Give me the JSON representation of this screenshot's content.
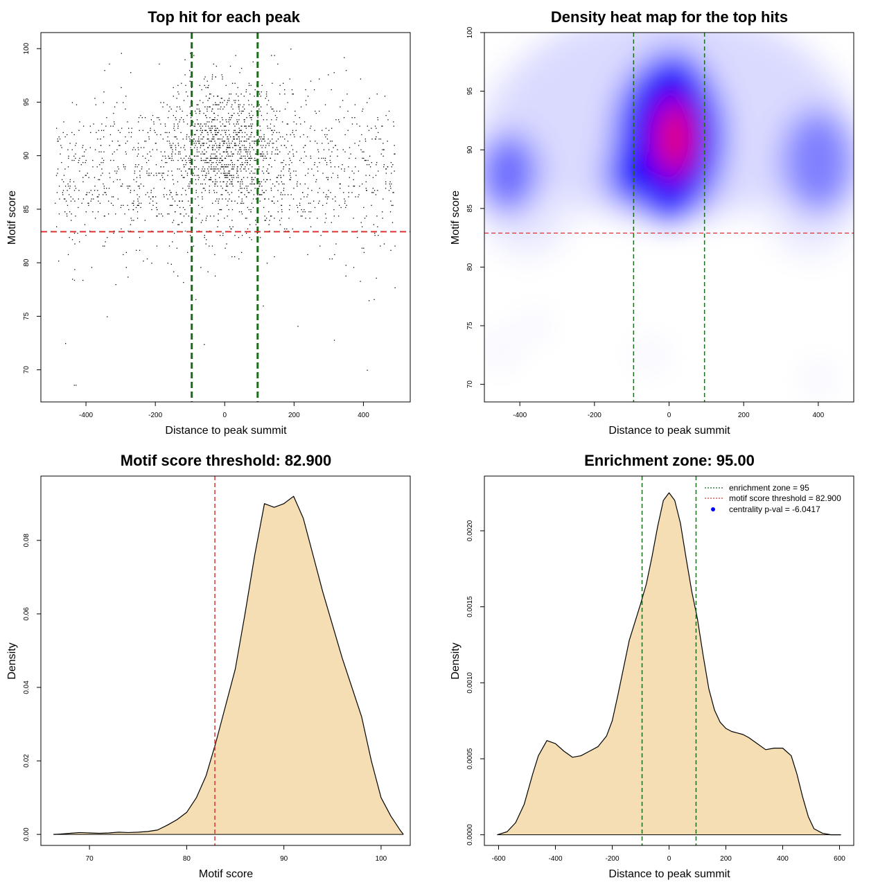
{
  "colors": {
    "threshold_line": "#e03030",
    "zone_line": "#1a6b1a",
    "fill": "#f5deb3",
    "heat_low": "#ffffff",
    "heat_mid": "#0000ff",
    "heat_high": "#ff0000"
  },
  "chart_data": [
    {
      "type": "scatter",
      "title": "Top hit for each peak",
      "xlabel": "Distance to peak summit",
      "ylabel": "Motif score",
      "xlim": [
        -530,
        535
      ],
      "ylim": [
        67,
        101.5
      ],
      "xticks": [
        "-400",
        "-200",
        "0",
        "200",
        "400"
      ],
      "xtick_values": [
        -400,
        -200,
        0,
        200,
        400
      ],
      "yticks": [
        "70",
        "75",
        "80",
        "85",
        "90",
        "95",
        "100"
      ],
      "ytick_values": [
        70,
        75,
        80,
        85,
        90,
        95,
        100
      ],
      "threshold": 82.9,
      "zone": [
        -95,
        95
      ],
      "n_points_approx": 2200,
      "points_mode": "x",
      "point_density": "concentrated near x=0 and score ~90, spread uniformly over -490..490 with scores 83-99"
    },
    {
      "type": "heatmap",
      "title": "Density heat map for the top hits",
      "xlabel": "Distance to peak summit",
      "ylabel": "Motif score",
      "xlim": [
        -495,
        495
      ],
      "ylim": [
        68.5,
        100
      ],
      "xticks": [
        "-400",
        "-200",
        "0",
        "200",
        "400"
      ],
      "xtick_values": [
        -400,
        -200,
        0,
        200,
        400
      ],
      "yticks": [
        "70",
        "75",
        "80",
        "85",
        "90",
        "95",
        "100"
      ],
      "ytick_values": [
        70,
        75,
        80,
        85,
        90,
        95,
        100
      ],
      "threshold": 82.9,
      "zone": [
        -95,
        95
      ],
      "peak": {
        "x": 15,
        "y": 91
      }
    },
    {
      "type": "area",
      "title": "Motif score threshold: 82.900",
      "xlabel": "Motif score",
      "ylabel": "Density",
      "xlim": [
        65,
        103
      ],
      "ylim": [
        -0.003,
        0.0975
      ],
      "xticks": [
        "70",
        "80",
        "90",
        "100"
      ],
      "xtick_values": [
        70,
        80,
        90,
        100
      ],
      "yticks": [
        "0.00",
        "0.02",
        "0.04",
        "0.06",
        "0.08"
      ],
      "ytick_values": [
        0,
        0.02,
        0.04,
        0.06,
        0.08
      ],
      "threshold": 82.9,
      "x": [
        66.3,
        67,
        68,
        69,
        70,
        71,
        72,
        73,
        74,
        75,
        76,
        77,
        78,
        79,
        80,
        81,
        82,
        83,
        84,
        85,
        86,
        87,
        88,
        89,
        90,
        91,
        92,
        93,
        94,
        95,
        96,
        97,
        98,
        99,
        100,
        101,
        102,
        102.3
      ],
      "y": [
        0,
        0.0001,
        0.0003,
        0.0005,
        0.0004,
        0.0003,
        0.0004,
        0.0006,
        0.0005,
        0.0006,
        0.0008,
        0.0012,
        0.0025,
        0.004,
        0.006,
        0.01,
        0.016,
        0.025,
        0.035,
        0.045,
        0.06,
        0.076,
        0.09,
        0.089,
        0.09,
        0.092,
        0.086,
        0.076,
        0.066,
        0.057,
        0.048,
        0.04,
        0.032,
        0.02,
        0.01,
        0.005,
        0.001,
        0
      ]
    },
    {
      "type": "area",
      "title": "Enrichment zone: 95.00",
      "xlabel": "Distance to peak summit",
      "ylabel": "Density",
      "xlim": [
        -650,
        650
      ],
      "ylim": [
        -7e-05,
        0.00236
      ],
      "xticks": [
        "-600",
        "-400",
        "-200",
        "0",
        "200",
        "400",
        "600"
      ],
      "xtick_values": [
        -600,
        -400,
        -200,
        0,
        200,
        400,
        600
      ],
      "yticks": [
        "0.0000",
        "0.0005",
        "0.0010",
        "0.0015",
        "0.0020"
      ],
      "ytick_values": [
        0,
        0.0005,
        0.001,
        0.0015,
        0.002
      ],
      "zone": [
        -95,
        95
      ],
      "x": [
        -605,
        -570,
        -540,
        -510,
        -480,
        -460,
        -430,
        -400,
        -370,
        -340,
        -310,
        -280,
        -250,
        -220,
        -200,
        -180,
        -160,
        -140,
        -120,
        -100,
        -80,
        -60,
        -40,
        -20,
        0,
        20,
        40,
        60,
        80,
        100,
        120,
        140,
        160,
        180,
        200,
        220,
        240,
        260,
        280,
        310,
        340,
        370,
        400,
        430,
        450,
        470,
        490,
        510,
        540,
        570,
        605
      ],
      "y": [
        0,
        2e-05,
        8e-05,
        0.0002,
        0.0004,
        0.00052,
        0.00062,
        0.0006,
        0.00055,
        0.00051,
        0.00052,
        0.00055,
        0.00058,
        0.00065,
        0.00075,
        0.00092,
        0.0011,
        0.00128,
        0.0014,
        0.00152,
        0.00165,
        0.00183,
        0.00203,
        0.0022,
        0.00225,
        0.0022,
        0.00205,
        0.00182,
        0.0016,
        0.00142,
        0.00118,
        0.00096,
        0.00082,
        0.00074,
        0.0007,
        0.00068,
        0.00067,
        0.00066,
        0.00064,
        0.0006,
        0.00056,
        0.00057,
        0.00057,
        0.00052,
        0.0004,
        0.00025,
        0.00012,
        4e-05,
        1e-05,
        0,
        0
      ],
      "legend": {
        "position": "top-right",
        "entries": [
          {
            "label": "enrichment zone = 95",
            "style": "dotted",
            "color": "#1a6b1a"
          },
          {
            "label": "motif score threshold = 82.900",
            "style": "dotted",
            "color": "#e03030"
          },
          {
            "label": "centrality p-val = -6.0417",
            "style": "point",
            "color": "#0000ff"
          }
        ]
      }
    }
  ]
}
